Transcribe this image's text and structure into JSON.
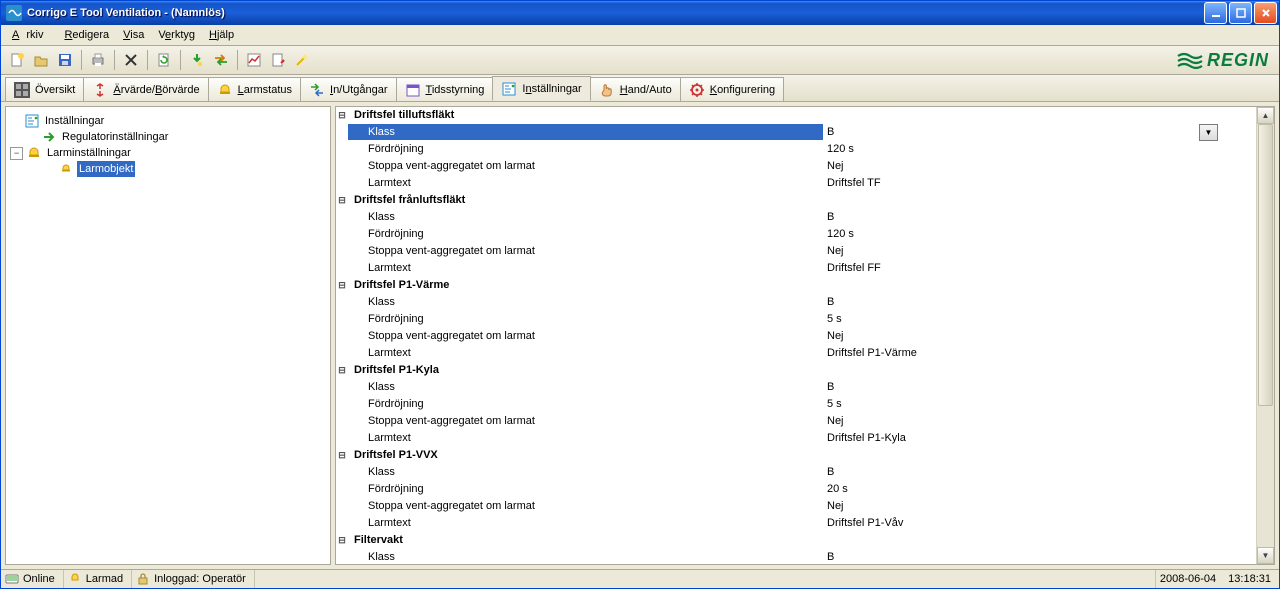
{
  "window": {
    "title": "Corrigo E Tool Ventilation - (Namnlös)"
  },
  "menu": {
    "arkiv": "Arkiv",
    "redigera": "Redigera",
    "visa": "Visa",
    "verktyg": "Verktyg",
    "hjalp": "Hjälp"
  },
  "brand": {
    "text": "REGIN"
  },
  "tabs": {
    "oversikt": "Översikt",
    "arborvarde": "Ärvärde/Börvärde",
    "larmstatus": "Larmstatus",
    "inutg": "In/Utgångar",
    "tidsstyrning": "Tidsstyrning",
    "installningar": "Inställningar",
    "handauto": "Hand/Auto",
    "konfigurering": "Konfigurering"
  },
  "tree": {
    "root": "Inställningar",
    "reg": "Regulatorinställningar",
    "larm": "Larminställningar",
    "larmobj": "Larmobjekt"
  },
  "labels": {
    "klass": "Klass",
    "fordrojning": "Fördröjning",
    "stoppa": "Stoppa vent-aggregatet om larmat",
    "larmtext": "Larmtext"
  },
  "groups": [
    {
      "title": "Driftsfel tilluftsfläkt",
      "selected": true,
      "rows": [
        {
          "k": "klass",
          "v": "B",
          "sel": true
        },
        {
          "k": "fordrojning",
          "v": "120 s"
        },
        {
          "k": "stoppa",
          "v": "Nej"
        },
        {
          "k": "larmtext",
          "v": "Driftsfel TF"
        }
      ]
    },
    {
      "title": "Driftsfel frånluftsfläkt",
      "rows": [
        {
          "k": "klass",
          "v": "B"
        },
        {
          "k": "fordrojning",
          "v": "120 s"
        },
        {
          "k": "stoppa",
          "v": "Nej"
        },
        {
          "k": "larmtext",
          "v": "Driftsfel FF"
        }
      ]
    },
    {
      "title": "Driftsfel P1-Värme",
      "rows": [
        {
          "k": "klass",
          "v": "B"
        },
        {
          "k": "fordrojning",
          "v": "5 s"
        },
        {
          "k": "stoppa",
          "v": "Nej"
        },
        {
          "k": "larmtext",
          "v": "Driftsfel P1-Värme"
        }
      ]
    },
    {
      "title": "Driftsfel P1-Kyla",
      "rows": [
        {
          "k": "klass",
          "v": "B"
        },
        {
          "k": "fordrojning",
          "v": "5 s"
        },
        {
          "k": "stoppa",
          "v": "Nej"
        },
        {
          "k": "larmtext",
          "v": "Driftsfel P1-Kyla"
        }
      ]
    },
    {
      "title": "Driftsfel P1-VVX",
      "rows": [
        {
          "k": "klass",
          "v": "B"
        },
        {
          "k": "fordrojning",
          "v": "20 s"
        },
        {
          "k": "stoppa",
          "v": "Nej"
        },
        {
          "k": "larmtext",
          "v": "Driftsfel P1-Våv"
        }
      ]
    },
    {
      "title": "Filtervakt",
      "rows": [
        {
          "k": "klass",
          "v": "B"
        }
      ]
    }
  ],
  "status": {
    "online": "Online",
    "larmad": "Larmad",
    "inloggad": "Inloggad: Operatör",
    "date": "2008-06-04",
    "time": "13:18:31"
  },
  "icons": {
    "tab_colors": {
      "oversikt": "#555",
      "arborvarde": "#c33",
      "larmstatus": "#e6b800",
      "inutg": "#2a9e2a",
      "tidsstyrning": "#7a52cc",
      "installningar": "#2a8fcc",
      "handauto": "#d97a00",
      "konfigurering": "#c33"
    }
  }
}
